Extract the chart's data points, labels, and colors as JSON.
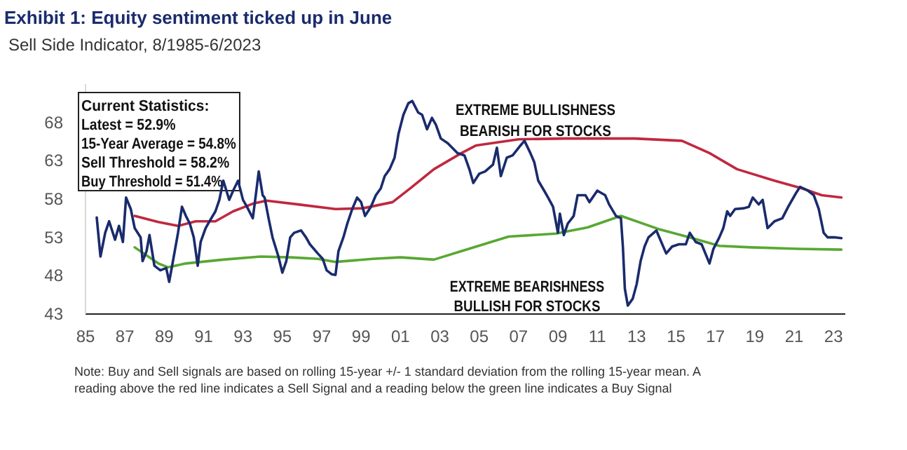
{
  "chart_data": {
    "type": "line",
    "title": "Exhibit 1: Equity sentiment ticked up in June",
    "subtitle": "Sell Side Indicator, 8/1985-6/2023",
    "xlim": [
      1985,
      2023.6
    ],
    "ylim": [
      43,
      73
    ],
    "xticks": [
      {
        "value": 1985,
        "label": "85"
      },
      {
        "value": 1987,
        "label": "87"
      },
      {
        "value": 1989,
        "label": "89"
      },
      {
        "value": 1991,
        "label": "91"
      },
      {
        "value": 1993,
        "label": "93"
      },
      {
        "value": 1995,
        "label": "95"
      },
      {
        "value": 1997,
        "label": "97"
      },
      {
        "value": 1999,
        "label": "99"
      },
      {
        "value": 2001,
        "label": "01"
      },
      {
        "value": 2003,
        "label": "03"
      },
      {
        "value": 2005,
        "label": "05"
      },
      {
        "value": 2007,
        "label": "07"
      },
      {
        "value": 2009,
        "label": "09"
      },
      {
        "value": 2011,
        "label": "11"
      },
      {
        "value": 2013,
        "label": "13"
      },
      {
        "value": 2015,
        "label": "15"
      },
      {
        "value": 2017,
        "label": "17"
      },
      {
        "value": 2019,
        "label": "19"
      },
      {
        "value": 2021,
        "label": "21"
      },
      {
        "value": 2023,
        "label": "23"
      }
    ],
    "yticks": [
      43,
      48,
      53,
      58,
      63,
      68
    ],
    "grid": false,
    "series": [
      {
        "color": "#c0283f",
        "x": [
          1987.5,
          1988.7,
          1989.7,
          1990.6,
          1991.6,
          1992.5,
          1993.5,
          1994.2,
          1995.8,
          1997.7,
          1999.1,
          2000.6,
          2001.5,
          2002.7,
          2004.1,
          2004.85,
          2007.0,
          2009.3,
          2012.9,
          2015.3,
          2016.7,
          2018.1,
          2020.0,
          2021.4,
          2022.4,
          2023.4
        ],
        "values": [
          55.8,
          55.0,
          54.5,
          55.1,
          55.1,
          56.4,
          57.4,
          57.8,
          57.3,
          56.7,
          56.8,
          57.6,
          59.4,
          61.9,
          64.0,
          65.0,
          65.8,
          65.9,
          65.9,
          65.6,
          64.0,
          61.9,
          60.4,
          59.4,
          58.5,
          58.2
        ]
      },
      {
        "color": "#58a832",
        "x": [
          1987.5,
          1988.7,
          1989.2,
          1990.1,
          1992.0,
          1993.9,
          1995.4,
          1996.8,
          1997.7,
          1999.6,
          2001.0,
          2002.7,
          2004.1,
          2004.85,
          2006.5,
          2008.9,
          2010.5,
          2012.2,
          2014.1,
          2015.7,
          2017.2,
          2018.8,
          2021.2,
          2023.4
        ],
        "values": [
          51.7,
          49.6,
          49.1,
          49.6,
          50.1,
          50.5,
          50.4,
          50.2,
          49.8,
          50.2,
          50.4,
          50.1,
          51.2,
          51.8,
          53.1,
          53.5,
          54.3,
          55.8,
          54.1,
          53.0,
          51.9,
          51.7,
          51.5,
          51.4
        ]
      },
      {
        "color": "#1a2b6d",
        "x": [
          1985.57,
          1985.76,
          1986.0,
          1986.2,
          1986.5,
          1986.7,
          1986.9,
          1987.06,
          1987.3,
          1987.5,
          1987.8,
          1987.9,
          1988.1,
          1988.25,
          1988.5,
          1988.8,
          1989.1,
          1989.25,
          1989.4,
          1989.7,
          1989.9,
          1990.1,
          1990.3,
          1990.5,
          1990.7,
          1990.85,
          1991.1,
          1991.3,
          1991.6,
          1991.8,
          1992.0,
          1992.3,
          1992.5,
          1992.75,
          1993.0,
          1993.2,
          1993.5,
          1993.65,
          1993.8,
          1994.0,
          1994.1,
          1994.3,
          1994.5,
          1994.8,
          1995.0,
          1995.2,
          1995.4,
          1995.6,
          1995.95,
          1996.2,
          1996.4,
          1996.8,
          1997.05,
          1997.25,
          1997.5,
          1997.7,
          1997.85,
          1998.1,
          1998.3,
          1998.55,
          1998.8,
          1999.0,
          1999.2,
          1999.5,
          1999.75,
          2000.0,
          2000.2,
          2000.45,
          2000.7,
          2000.9,
          2001.15,
          2001.4,
          2001.6,
          2001.9,
          2002.1,
          2002.35,
          2002.6,
          2002.8,
          2003.05,
          2003.4,
          2003.9,
          2004.25,
          2004.5,
          2004.7,
          2005.0,
          2005.3,
          2005.7,
          2005.9,
          2006.1,
          2006.4,
          2006.7,
          2007.1,
          2007.3,
          2007.6,
          2007.8,
          2008.0,
          2008.3,
          2008.5,
          2008.75,
          2009.0,
          2009.1,
          2009.3,
          2009.5,
          2009.8,
          2010.0,
          2010.4,
          2010.6,
          2011.0,
          2011.4,
          2011.6,
          2011.95,
          2012.2,
          2012.3,
          2012.4,
          2012.55,
          2012.8,
          2013.0,
          2013.2,
          2013.4,
          2013.6,
          2014.0,
          2014.2,
          2014.5,
          2014.8,
          2015.15,
          2015.5,
          2015.7,
          2016.0,
          2016.3,
          2016.7,
          2016.9,
          2017.2,
          2017.4,
          2017.6,
          2017.75,
          2018.0,
          2018.45,
          2018.7,
          2018.9,
          2019.2,
          2019.4,
          2019.65,
          2020.0,
          2020.4,
          2020.7,
          2021.1,
          2021.3,
          2021.7,
          2022.0,
          2022.25,
          2022.5,
          2022.7,
          2023.1,
          2023.4
        ],
        "values": [
          55.6,
          50.5,
          53.6,
          55.1,
          52.7,
          54.5,
          52.4,
          58.2,
          56.7,
          54.2,
          53.0,
          49.9,
          51.2,
          53.3,
          49.3,
          48.7,
          49.0,
          47.2,
          49.3,
          53.6,
          57.0,
          55.8,
          54.8,
          53.0,
          49.3,
          52.4,
          54.2,
          55.1,
          56.4,
          57.9,
          60.4,
          57.9,
          59.1,
          60.4,
          57.9,
          57.0,
          55.5,
          58.5,
          61.6,
          58.5,
          58.2,
          55.5,
          53.0,
          50.5,
          48.4,
          49.9,
          53.0,
          53.6,
          53.9,
          53.0,
          52.1,
          50.9,
          50.2,
          48.7,
          48.2,
          48.1,
          51.2,
          53.0,
          54.8,
          56.7,
          58.2,
          57.6,
          55.8,
          57.0,
          58.5,
          59.4,
          61.0,
          61.9,
          63.4,
          66.5,
          69.0,
          70.5,
          70.8,
          69.3,
          69.0,
          67.1,
          68.6,
          67.7,
          65.9,
          65.3,
          64.0,
          63.7,
          61.9,
          60.1,
          61.3,
          61.6,
          62.5,
          64.7,
          61.0,
          63.4,
          63.7,
          65.0,
          65.6,
          64.0,
          62.8,
          60.4,
          59.1,
          58.2,
          57.0,
          53.6,
          56.1,
          53.3,
          54.8,
          55.8,
          58.5,
          58.5,
          57.6,
          59.1,
          58.5,
          57.3,
          55.8,
          55.5,
          51.8,
          46.3,
          44.1,
          45.0,
          46.9,
          49.9,
          51.8,
          53.0,
          53.9,
          52.7,
          50.9,
          51.8,
          52.1,
          52.1,
          53.6,
          52.4,
          52.1,
          49.6,
          51.5,
          53.0,
          54.2,
          56.4,
          55.8,
          56.7,
          56.8,
          57.0,
          58.2,
          57.3,
          57.9,
          54.2,
          55.1,
          55.5,
          57.0,
          58.8,
          59.6,
          59.1,
          58.5,
          56.7,
          53.6,
          53.0,
          53.0,
          52.9
        ]
      }
    ],
    "annotations": [
      "Current Statistics:\nLatest = 52.9%\n15-Year Average = 54.8%\nSell Threshold = 58.2%\nBuy Threshold = 51.4%",
      "EXTREME BULLISHNESS\nBEARISH FOR STOCKS",
      "EXTREME BEARISHNESS\nBULLISH FOR STOCKS",
      "Note: Buy and Sell signals are based on rolling 15-year +/- 1 standard deviation from the rolling 15-year mean. A reading above the red line indicates a Sell Signal and a reading below the green line indicates a Buy Signal"
    ]
  }
}
